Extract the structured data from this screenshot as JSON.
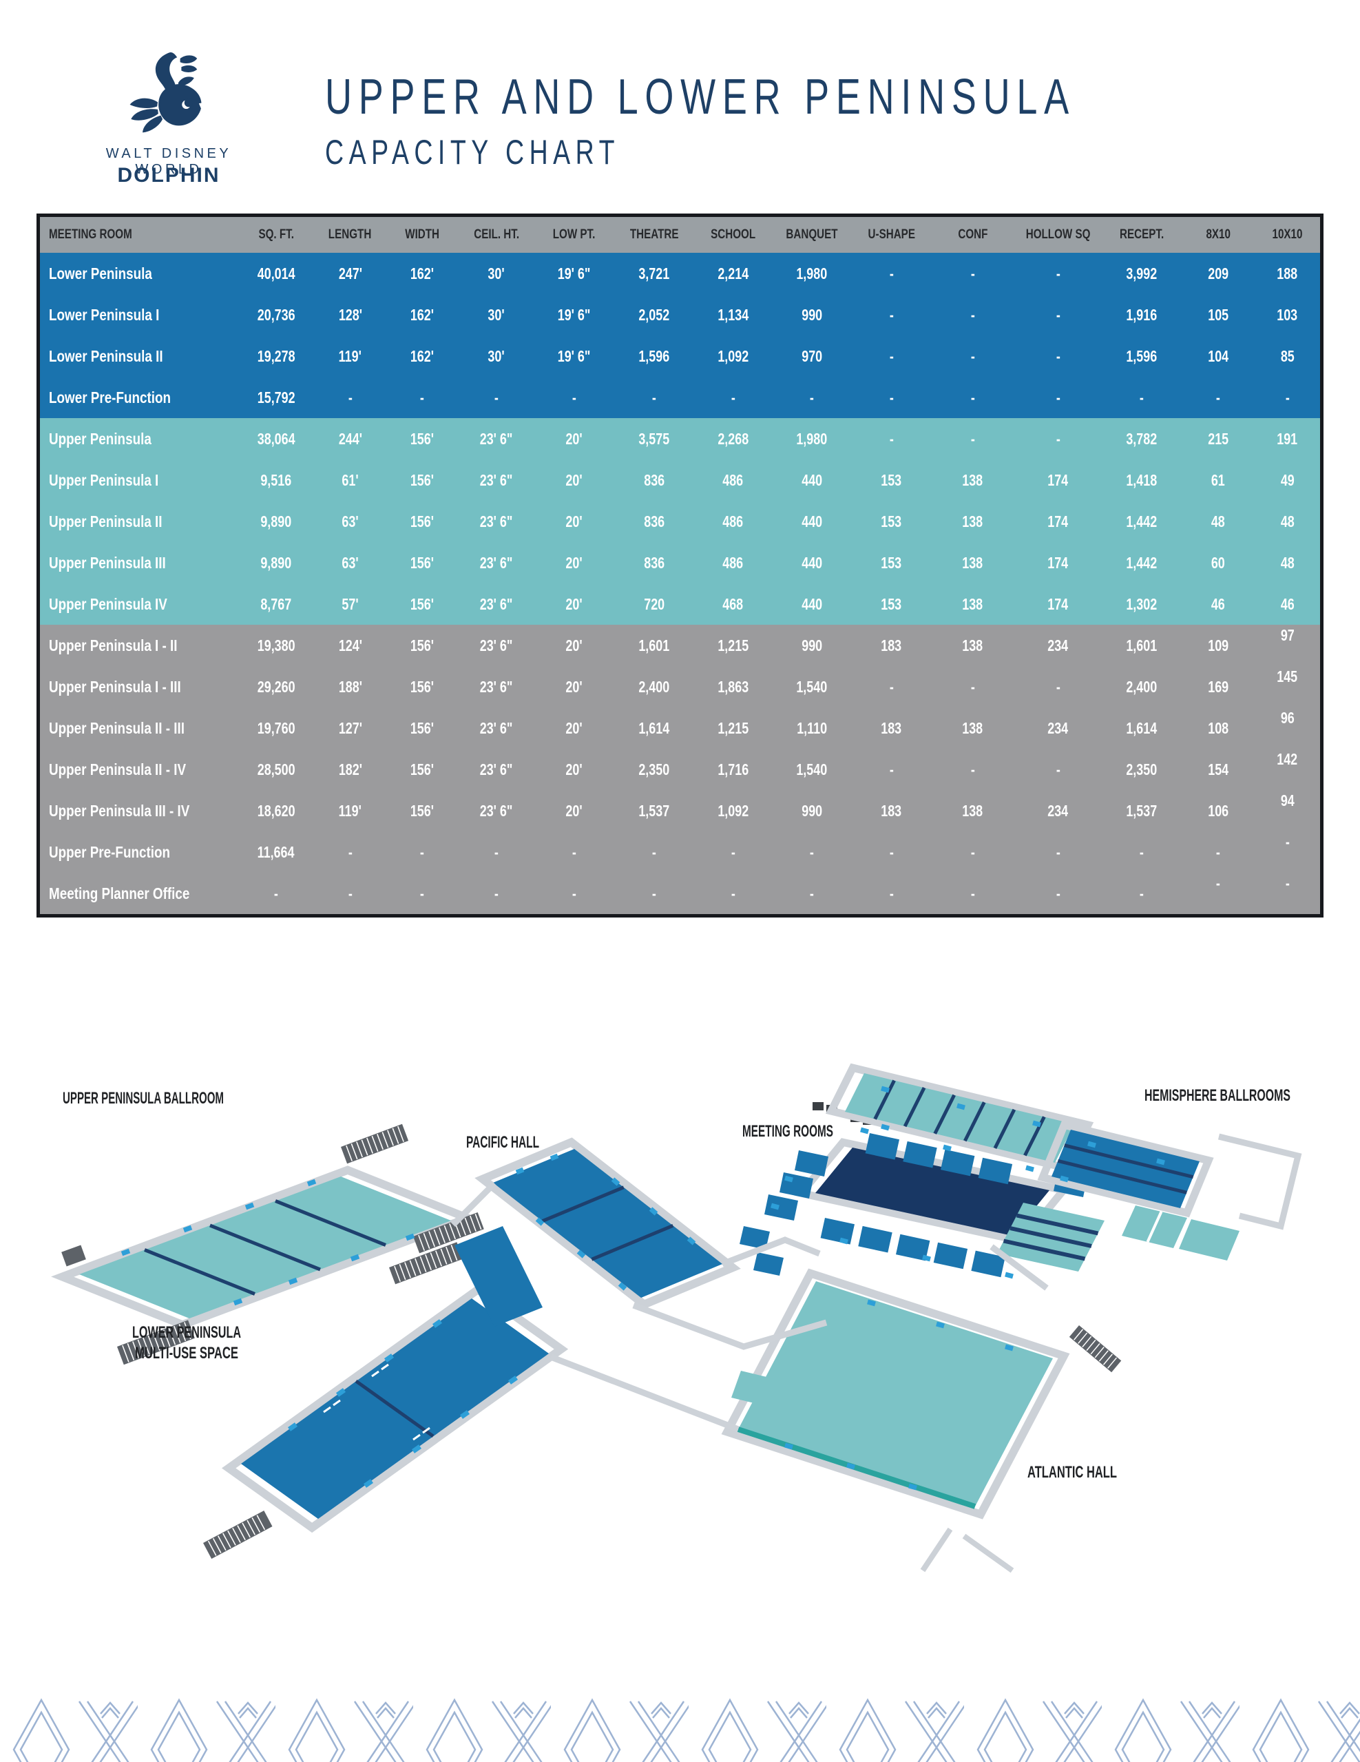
{
  "brand": {
    "line1": "WALT DISNEY WORLD",
    "line2": "DOLPHIN"
  },
  "title": "UPPER AND LOWER PENINSULA",
  "subtitle": "CAPACITY CHART",
  "colors": {
    "navy": "#1e4066",
    "table_blue": "#1a73ae",
    "table_teal": "#74bfc3",
    "table_gray": "#9b9b9d",
    "header_gray": "#9aa0a4",
    "floor_teal": "#7cc3c6",
    "floor_blue": "#1b75ae",
    "floor_navy": "#183764",
    "pattern_blue": "#9db3d3",
    "tick_blue": "#2d9fd8"
  },
  "chart_data": {
    "type": "table",
    "title": "UPPER AND LOWER PENINSULA CAPACITY CHART",
    "columns": [
      "MEETING ROOM",
      "SQ. FT.",
      "LENGTH",
      "WIDTH",
      "CEIL. HT.",
      "LOW PT.",
      "THEATRE",
      "SCHOOL",
      "BANQUET",
      "U-SHAPE",
      "CONF",
      "HOLLOW SQ",
      "RECEPT.",
      "8X10",
      "10X10"
    ],
    "rows": [
      {
        "name": "Lower Peninsula",
        "group": "lower",
        "values": [
          "40,014",
          "247'",
          "162'",
          "30'",
          "19' 6\"",
          "3,721",
          "2,214",
          "1,980",
          "-",
          "-",
          "-",
          "3,992",
          "209",
          "188"
        ]
      },
      {
        "name": "Lower Peninsula I",
        "group": "lower",
        "values": [
          "20,736",
          "128'",
          "162'",
          "30'",
          "19' 6\"",
          "2,052",
          "1,134",
          "990",
          "-",
          "-",
          "-",
          "1,916",
          "105",
          "103"
        ]
      },
      {
        "name": "Lower Peninsula II",
        "group": "lower",
        "values": [
          "19,278",
          "119'",
          "162'",
          "30'",
          "19' 6\"",
          "1,596",
          "1,092",
          "970",
          "-",
          "-",
          "-",
          "1,596",
          "104",
          "85"
        ]
      },
      {
        "name": "Lower Pre-Function",
        "group": "lower",
        "values": [
          "15,792",
          "-",
          "-",
          "-",
          "-",
          "-",
          "-",
          "-",
          "-",
          "-",
          "-",
          "-",
          "-",
          "-"
        ]
      },
      {
        "name": "Upper Peninsula",
        "group": "upper",
        "values": [
          "38,064",
          "244'",
          "156'",
          "23' 6\"",
          "20'",
          "3,575",
          "2,268",
          "1,980",
          "-",
          "-",
          "-",
          "3,782",
          "215",
          "191"
        ]
      },
      {
        "name": "Upper Peninsula I",
        "group": "upper",
        "values": [
          "9,516",
          "61'",
          "156'",
          "23' 6\"",
          "20'",
          "836",
          "486",
          "440",
          "153",
          "138",
          "174",
          "1,418",
          "61",
          "49"
        ]
      },
      {
        "name": "Upper Peninsula II",
        "group": "upper",
        "values": [
          "9,890",
          "63'",
          "156'",
          "23' 6\"",
          "20'",
          "836",
          "486",
          "440",
          "153",
          "138",
          "174",
          "1,442",
          "48",
          "48"
        ]
      },
      {
        "name": "Upper Peninsula III",
        "group": "upper",
        "values": [
          "9,890",
          "63'",
          "156'",
          "23' 6\"",
          "20'",
          "836",
          "486",
          "440",
          "153",
          "138",
          "174",
          "1,442",
          "60",
          "48"
        ]
      },
      {
        "name": "Upper Peninsula IV",
        "group": "upper",
        "values": [
          "8,767",
          "57'",
          "156'",
          "23' 6\"",
          "20'",
          "720",
          "468",
          "440",
          "153",
          "138",
          "174",
          "1,302",
          "46",
          "46"
        ]
      },
      {
        "name": "Upper Peninsula I - II",
        "group": "combo",
        "values": [
          "19,380",
          "124'",
          "156'",
          "23' 6\"",
          "20'",
          "1,601",
          "1,215",
          "990",
          "183",
          "138",
          "234",
          "1,601",
          "109",
          "97"
        ],
        "raise": [
          13
        ]
      },
      {
        "name": "Upper Peninsula I - III",
        "group": "combo",
        "values": [
          "29,260",
          "188'",
          "156'",
          "23' 6\"",
          "20'",
          "2,400",
          "1,863",
          "1,540",
          "-",
          "-",
          "-",
          "2,400",
          "169",
          "145"
        ],
        "raise": [
          13
        ]
      },
      {
        "name": "Upper Peninsula II - III",
        "group": "combo",
        "values": [
          "19,760",
          "127'",
          "156'",
          "23' 6\"",
          "20'",
          "1,614",
          "1,215",
          "1,110",
          "183",
          "138",
          "234",
          "1,614",
          "108",
          "96"
        ],
        "raise": [
          13
        ]
      },
      {
        "name": "Upper Peninsula II - IV",
        "group": "combo",
        "values": [
          "28,500",
          "182'",
          "156'",
          "23' 6\"",
          "20'",
          "2,350",
          "1,716",
          "1,540",
          "-",
          "-",
          "-",
          "2,350",
          "154",
          "142"
        ],
        "raise": [
          13
        ]
      },
      {
        "name": "Upper Peninsula III - IV",
        "group": "combo",
        "values": [
          "18,620",
          "119'",
          "156'",
          "23' 6\"",
          "20'",
          "1,537",
          "1,092",
          "990",
          "183",
          "138",
          "234",
          "1,537",
          "106",
          "94"
        ],
        "raise": [
          13
        ]
      },
      {
        "name": "Upper Pre-Function",
        "group": "combo",
        "values": [
          "11,664",
          "-",
          "-",
          "-",
          "-",
          "-",
          "-",
          "-",
          "-",
          "-",
          "-",
          "-",
          "-",
          "-"
        ],
        "raise": [
          13
        ]
      },
      {
        "name": "Meeting Planner Office",
        "group": "combo",
        "values": [
          "-",
          "-",
          "-",
          "-",
          "-",
          "-",
          "-",
          "-",
          "-",
          "-",
          "-",
          "-",
          "-",
          "-"
        ],
        "raise": [
          12,
          13
        ]
      }
    ]
  },
  "floorplan": {
    "labels": {
      "upb": "UPPER PENINSULA BALLROOM",
      "pacific": "PACIFIC HALL",
      "meeting": "MEETING ROOMS",
      "hemisphere": "HEMISPHERE BALLROOMS",
      "lower1": "LOWER PENINSULA",
      "lower2": "MULTI-USE SPACE",
      "atlantic": "ATLANTIC HALL"
    }
  }
}
